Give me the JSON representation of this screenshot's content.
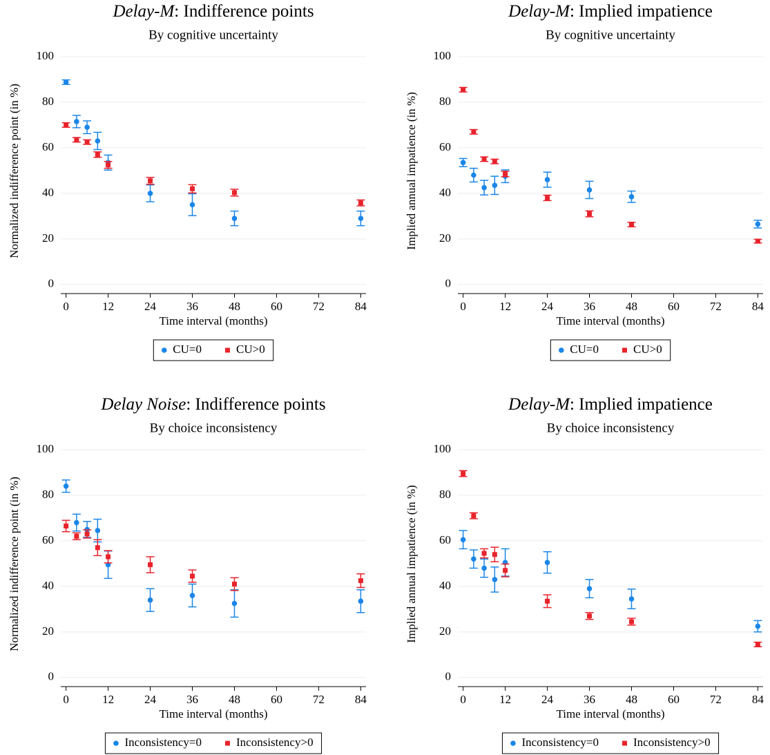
{
  "chart_data": [
    {
      "type": "scatter",
      "title": "Delay-M: Indifference points",
      "subtitle": "By cognitive uncertainty",
      "x_label": "Time interval (months)",
      "y_label": "Normalized indifference point (in %)",
      "x": [
        0,
        3,
        6,
        9,
        12,
        24,
        36,
        48,
        84
      ],
      "series": [
        {
          "name": "CU=0",
          "color": "#1a86e8",
          "marker": "circle",
          "values": [
            88.8,
            71.5,
            69,
            63,
            53.5,
            40,
            35,
            29,
            29
          ],
          "errors": [
            1,
            2.7,
            2.8,
            3.8,
            3.3,
            3.7,
            4.8,
            3.2,
            3.2
          ]
        },
        {
          "name": "CU>0",
          "color": "#e8232b",
          "marker": "square",
          "values": [
            70,
            63.5,
            62.5,
            57,
            52.5,
            45.5,
            42,
            40.3,
            35.8
          ],
          "errors": [
            1,
            1,
            1,
            1.2,
            1.5,
            1.5,
            1.8,
            1.5,
            1.3
          ]
        }
      ],
      "xlim": [
        -1.5,
        85.5
      ],
      "xticks": [
        0,
        12,
        24,
        36,
        48,
        60,
        72,
        84
      ],
      "ylim": [
        -4,
        100
      ],
      "yticks": [
        0,
        20,
        40,
        60,
        80,
        100
      ],
      "grid": true
    },
    {
      "type": "scatter",
      "title": "Delay-M: Implied impatience",
      "subtitle": "By cognitive uncertainty",
      "x_label": "Time interval (months)",
      "y_label": "Implied annual impatience (in %)",
      "x": [
        0,
        3,
        6,
        9,
        12,
        24,
        36,
        48,
        84
      ],
      "series": [
        {
          "name": "CU=0",
          "color": "#1a86e8",
          "marker": "circle",
          "values": [
            53.5,
            48,
            42.5,
            43.5,
            47.5,
            46,
            41.5,
            38.5,
            26.5
          ],
          "errors": [
            1.8,
            3,
            3.2,
            4,
            2.8,
            3.3,
            3.8,
            2.5,
            1.7
          ]
        },
        {
          "name": "CU>0",
          "color": "#e8232b",
          "marker": "square",
          "values": [
            85.5,
            67,
            55,
            54,
            48.5,
            38,
            31,
            26.3,
            19
          ],
          "errors": [
            1,
            1,
            1,
            1,
            1.2,
            1.2,
            1.3,
            1,
            0.8
          ]
        }
      ],
      "xlim": [
        -1.5,
        85.5
      ],
      "xticks": [
        0,
        12,
        24,
        36,
        48,
        60,
        72,
        84
      ],
      "ylim": [
        -4,
        100
      ],
      "yticks": [
        0,
        20,
        40,
        60,
        80,
        100
      ],
      "grid": true
    },
    {
      "type": "scatter",
      "title": "Delay Noise: Indifference points",
      "subtitle": "By choice inconsistency",
      "x_label": "Time interval (months)",
      "y_label": "Normalized indifference point (in %)",
      "x": [
        0,
        3,
        6,
        9,
        12,
        24,
        36,
        48,
        84
      ],
      "series": [
        {
          "name": "Inconsistency=0",
          "color": "#1a86e8",
          "marker": "circle",
          "values": [
            84,
            68,
            65,
            64.5,
            49.5,
            34,
            36,
            32.5,
            33.5
          ],
          "errors": [
            2.7,
            3.7,
            3.5,
            5,
            6,
            5,
            5,
            6,
            5
          ]
        },
        {
          "name": "Inconsistency>0",
          "color": "#e8232b",
          "marker": "square",
          "values": [
            66.5,
            62,
            63,
            57,
            53,
            49.5,
            44.5,
            41,
            42.5
          ],
          "errors": [
            2.5,
            1.5,
            1.8,
            3.5,
            2.7,
            3.5,
            2.7,
            2.8,
            3
          ]
        }
      ],
      "xlim": [
        -1.5,
        85.5
      ],
      "xticks": [
        0,
        12,
        24,
        36,
        48,
        60,
        72,
        84
      ],
      "ylim": [
        -4,
        100
      ],
      "yticks": [
        0,
        20,
        40,
        60,
        80,
        100
      ],
      "grid": true
    },
    {
      "type": "scatter",
      "title": "Delay-M: Implied impatience",
      "subtitle": "By choice inconsistency",
      "x_label": "Time interval (months)",
      "y_label": "Implied annual impatience (in %)",
      "x": [
        0,
        3,
        6,
        9,
        12,
        24,
        36,
        48,
        84
      ],
      "series": [
        {
          "name": "Inconsistency=0",
          "color": "#1a86e8",
          "marker": "circle",
          "values": [
            60.5,
            52,
            48,
            43,
            50.5,
            50.5,
            39,
            34.5,
            22.5
          ],
          "errors": [
            4,
            4,
            4,
            5.5,
            6,
            4.7,
            4,
            4.3,
            2.5
          ]
        },
        {
          "name": "Inconsistency>0",
          "color": "#e8232b",
          "marker": "square",
          "values": [
            89.5,
            71,
            54.5,
            54,
            47,
            33.5,
            27,
            24.5,
            14.5
          ],
          "errors": [
            1.3,
            1.3,
            2,
            3.2,
            2.8,
            2.8,
            1.5,
            1.5,
            1
          ]
        }
      ],
      "xlim": [
        -1.5,
        85.5
      ],
      "xticks": [
        0,
        12,
        24,
        36,
        48,
        60,
        72,
        84
      ],
      "ylim": [
        -4,
        100
      ],
      "yticks": [
        0,
        20,
        40,
        60,
        80,
        100
      ],
      "grid": true
    }
  ]
}
